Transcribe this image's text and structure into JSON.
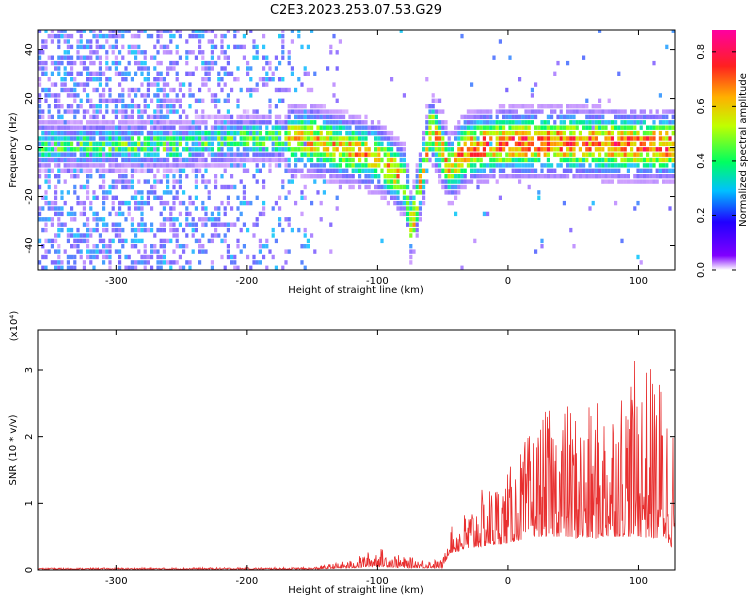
{
  "title": "C2E3.2023.253.07.53.G29",
  "colorbar": {
    "label": "Normalized spectral amplitude",
    "ticks": [
      "0.0",
      "0.2",
      "0.4",
      "0.6",
      "0.8"
    ],
    "range": [
      0,
      0.88
    ]
  },
  "chart_data": [
    {
      "type": "heatmap",
      "xlabel": "Height of straight line (km)",
      "ylabel": "Frequency (Hz)",
      "xlim": [
        -360,
        128
      ],
      "ylim": [
        -50,
        48
      ],
      "xticks": [
        -300,
        -200,
        -100,
        0,
        100
      ],
      "yticks": [
        -40,
        -20,
        0,
        20,
        40
      ],
      "ridge_profile": {
        "description_points_height_km": [
          -360,
          -250,
          -200,
          -150,
          -100,
          -80,
          -75,
          -60,
          -45,
          -35,
          -20,
          0,
          50,
          100,
          128
        ],
        "center_frequency_hz": [
          0,
          0,
          3,
          2,
          -5,
          -15,
          -35,
          8,
          -10,
          -2,
          0,
          1,
          1,
          0,
          0
        ]
      },
      "colorscale": "rainbow"
    },
    {
      "type": "line",
      "xlabel": "Height of straight line (km)",
      "ylabel": "SNR (10 * v/v)",
      "scale_label": "(x10⁴)",
      "xlim": [
        -360,
        128
      ],
      "ylim": [
        0,
        3.6
      ],
      "xticks": [
        -300,
        -200,
        -100,
        0,
        100
      ],
      "yticks": [
        0,
        1,
        2,
        3
      ],
      "color": "#e83030",
      "envelope": {
        "x": [
          -360,
          -150,
          -120,
          -100,
          -80,
          -50,
          -45,
          -20,
          0,
          20,
          40,
          60,
          80,
          100,
          120,
          128
        ],
        "peak": [
          0.03,
          0.04,
          0.15,
          0.35,
          0.2,
          0.15,
          0.6,
          1.2,
          1.5,
          2.2,
          2.6,
          2.4,
          2.8,
          3.2,
          3.0,
          2.2
        ],
        "base": [
          0.01,
          0.01,
          0.03,
          0.05,
          0.03,
          0.03,
          0.25,
          0.35,
          0.4,
          0.5,
          0.5,
          0.45,
          0.5,
          0.5,
          0.45,
          0.3
        ]
      }
    }
  ]
}
